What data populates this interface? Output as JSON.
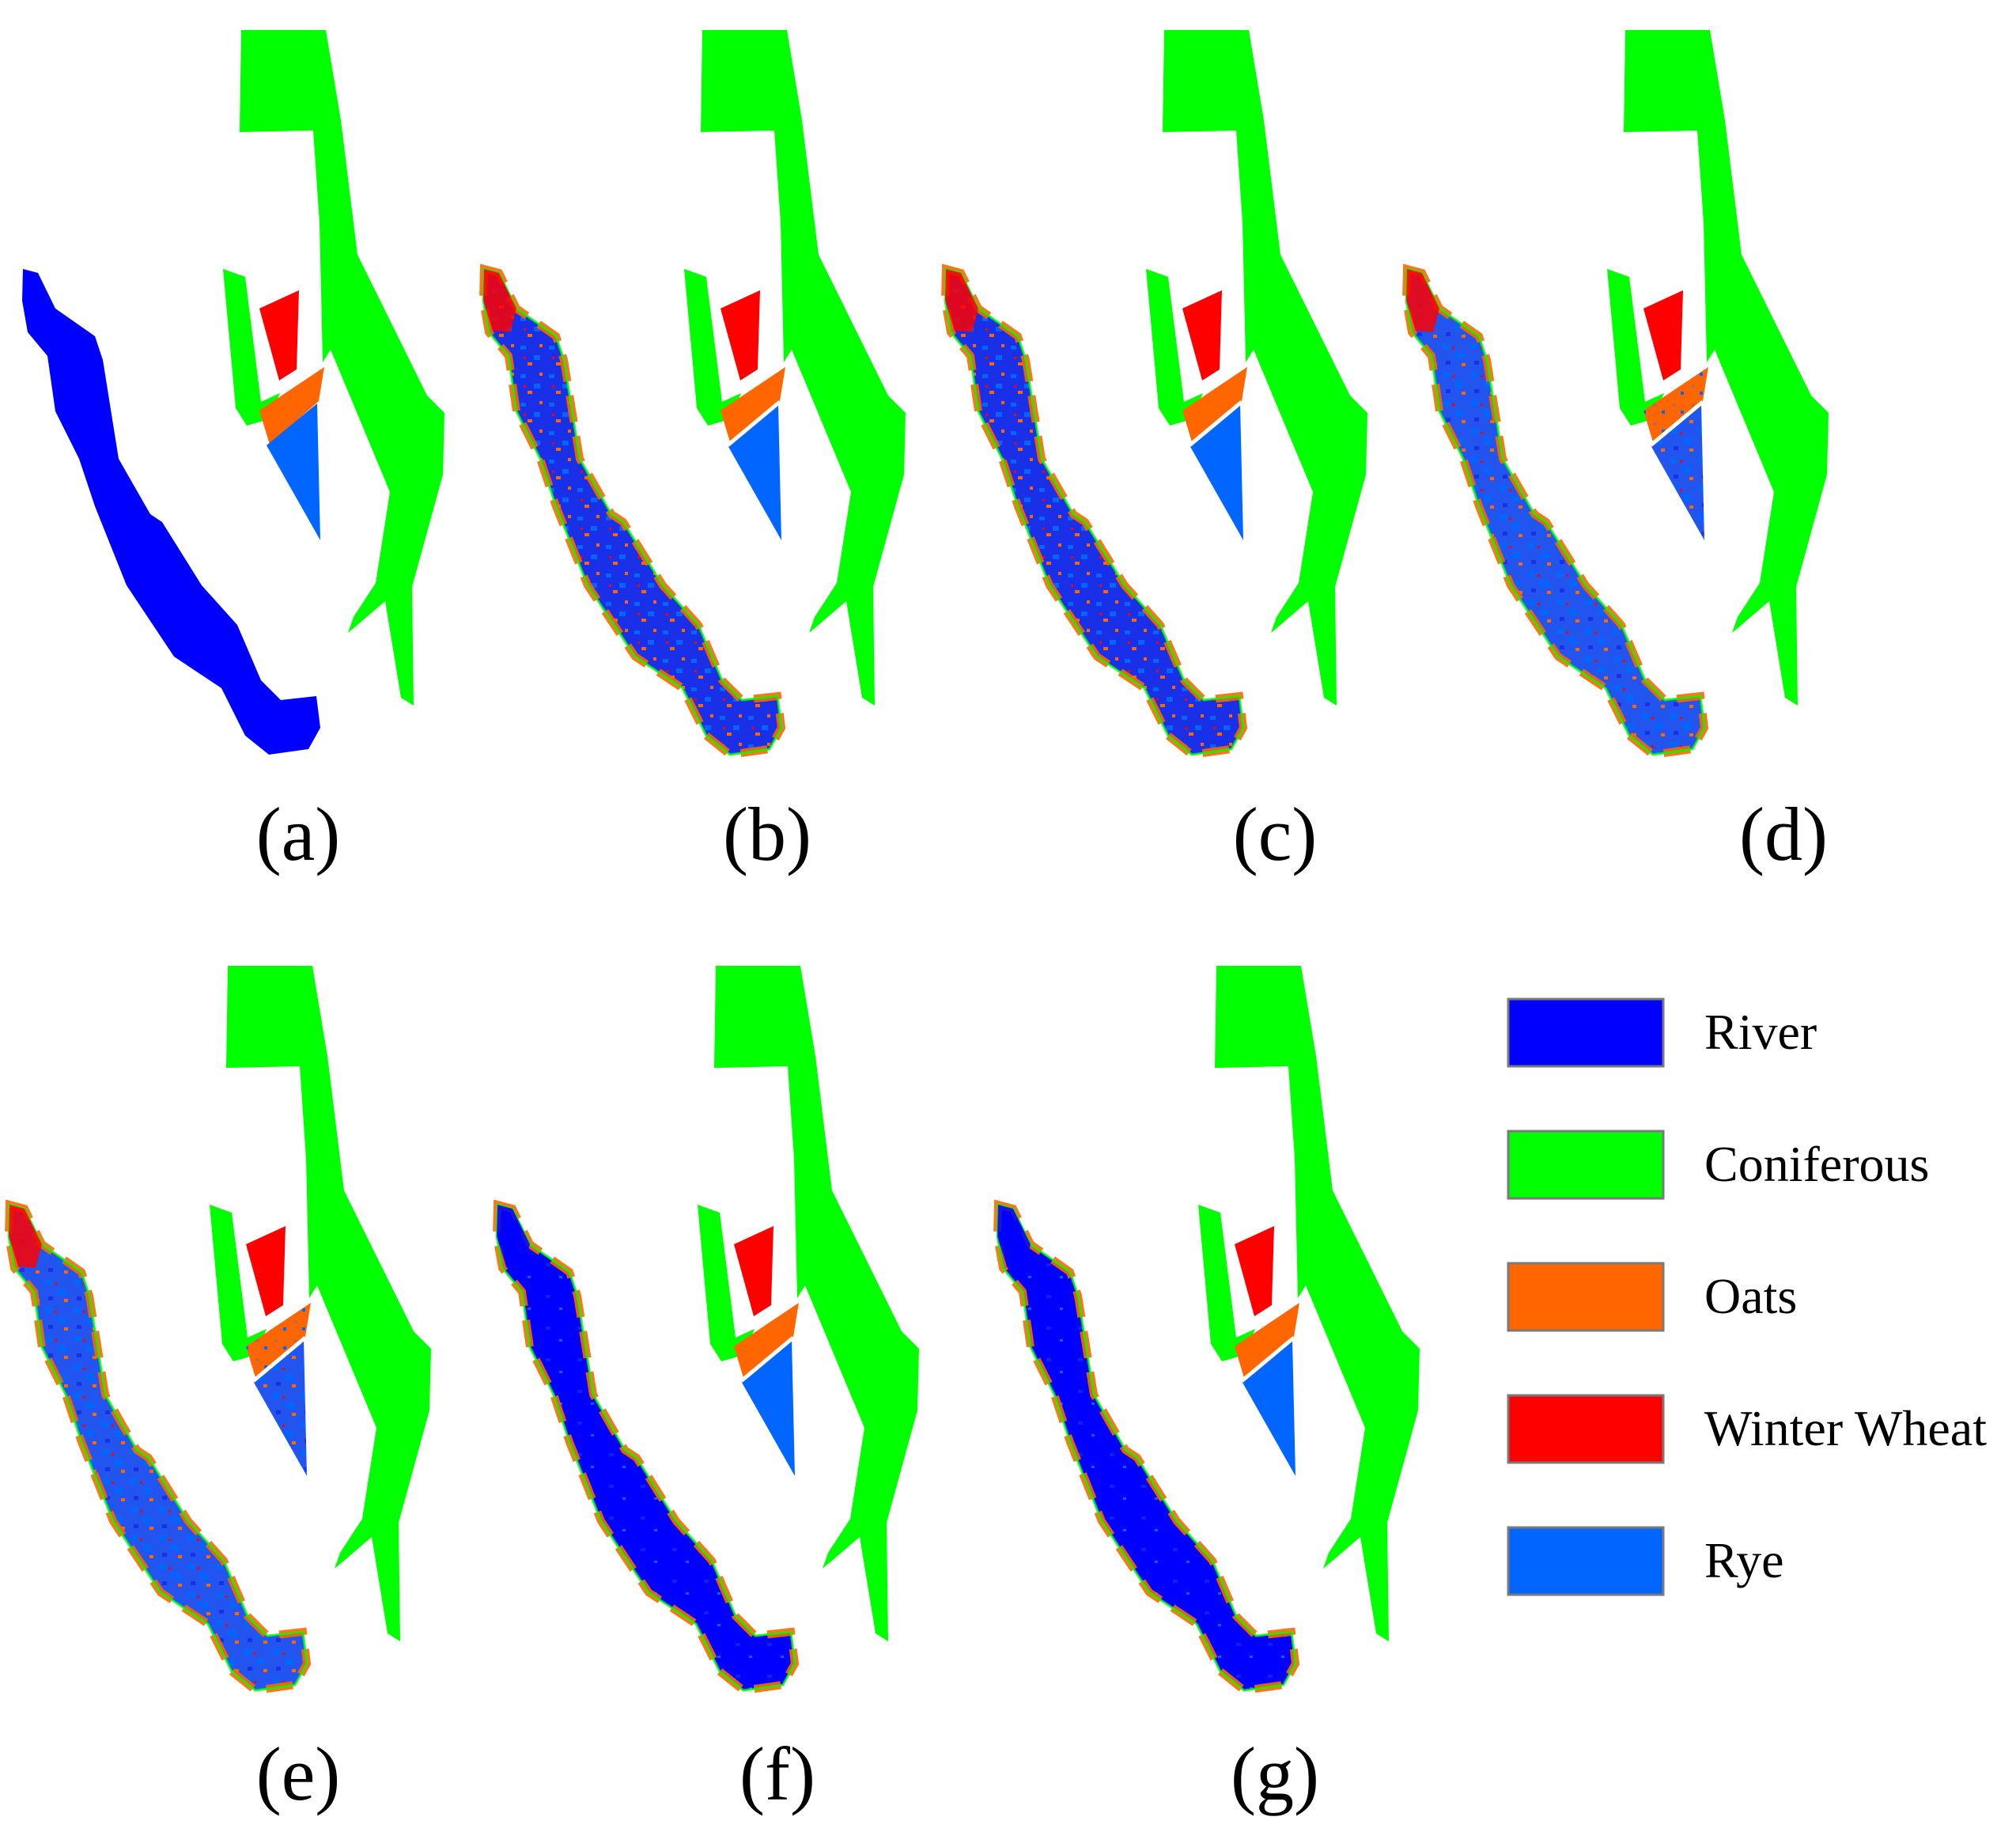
{
  "colors": {
    "River": "#0000ff",
    "Coniferous": "#00ff00",
    "Oats": "#ff6600",
    "Winter Wheat": "#ff0000",
    "Rye": "#0066ff"
  },
  "panels": [
    {
      "id": "a",
      "label": "(a)",
      "variant": "ground-truth"
    },
    {
      "id": "b",
      "label": "(b)",
      "variant": "noisy-mixed"
    },
    {
      "id": "c",
      "label": "(c)",
      "variant": "noisy-mixed"
    },
    {
      "id": "d",
      "label": "(d)",
      "variant": "rye-dominant"
    },
    {
      "id": "e",
      "label": "(e)",
      "variant": "rye-dominant"
    },
    {
      "id": "f",
      "label": "(f)",
      "variant": "river-dominant"
    },
    {
      "id": "g",
      "label": "(g)",
      "variant": "river-dominant"
    }
  ],
  "legend": [
    {
      "label": "River",
      "color": "#0000ff"
    },
    {
      "label": "Coniferous",
      "color": "#00ff00"
    },
    {
      "label": "Oats",
      "color": "#ff6600"
    },
    {
      "label": "Winter Wheat",
      "color": "#ff0000"
    },
    {
      "label": "Rye",
      "color": "#0066ff"
    }
  ]
}
